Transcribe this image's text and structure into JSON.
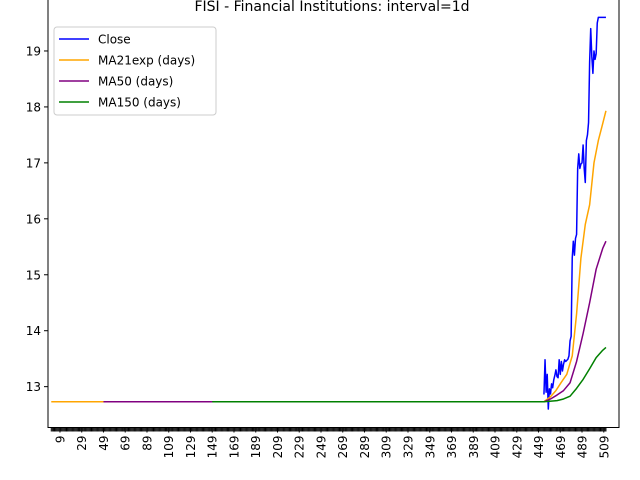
{
  "chart_data": {
    "type": "line",
    "title": "FISI - Financial Institutions: interval=1d",
    "xlabel": "",
    "ylabel": "",
    "xlim": [
      -2,
      523
    ],
    "ylim": [
      12.27,
      19.92
    ],
    "x_ticks": [
      9,
      29,
      49,
      69,
      89,
      109,
      129,
      149,
      169,
      189,
      209,
      229,
      249,
      269,
      289,
      309,
      329,
      349,
      369,
      389,
      409,
      429,
      449,
      469,
      489,
      509
    ],
    "y_ticks": [
      13,
      14,
      15,
      16,
      17,
      18,
      19
    ],
    "x_minor_ticks": {
      "from": 1,
      "to": 511,
      "step": 1
    },
    "grid": false,
    "legend_position": "upper-left",
    "series": [
      {
        "name": "Close",
        "color": "#0000ff",
        "x": [
          454,
          455,
          456,
          457,
          458,
          459,
          460,
          461,
          462,
          463,
          464,
          465,
          466,
          467,
          468,
          469,
          470,
          471,
          472,
          473,
          474,
          475,
          476,
          477,
          478,
          479,
          480,
          481,
          482,
          483,
          484,
          485,
          486,
          487,
          488,
          489,
          490,
          491,
          492,
          493,
          494,
          495,
          496,
          497,
          498,
          499,
          500,
          501,
          502,
          503,
          504,
          505,
          506,
          507,
          508,
          509,
          510,
          511
        ],
        "y": [
          12.86,
          13.48,
          12.9,
          13.22,
          12.6,
          12.96,
          12.87,
          13.05,
          12.98,
          13.12,
          13.2,
          13.3,
          13.18,
          13.16,
          13.48,
          13.22,
          13.45,
          13.28,
          13.4,
          13.48,
          13.45,
          13.47,
          13.49,
          13.55,
          13.82,
          13.9,
          15.3,
          15.6,
          15.35,
          15.65,
          15.72,
          16.9,
          17.16,
          16.9,
          16.98,
          17.0,
          17.32,
          16.9,
          16.65,
          17.4,
          17.5,
          17.72,
          18.8,
          19.4,
          18.9,
          18.6,
          19.0,
          18.85,
          18.95,
          19.5,
          19.6,
          19.6,
          19.6,
          19.6,
          19.6,
          19.6,
          19.6,
          19.6
        ]
      },
      {
        "name": "MA21exp (days)",
        "color": "#ffa500",
        "x": [
          1,
          49,
          454,
          460,
          465,
          470,
          475,
          480,
          484,
          488,
          492,
          496,
          500,
          504,
          508,
          511
        ],
        "y": [
          12.73,
          12.73,
          12.73,
          12.82,
          12.93,
          13.08,
          13.22,
          13.55,
          14.3,
          15.3,
          15.9,
          16.25,
          17.0,
          17.4,
          17.7,
          17.93
        ]
      },
      {
        "name": "MA50 (days)",
        "color": "#800080",
        "x": [
          49,
          149,
          454,
          460,
          466,
          472,
          478,
          484,
          490,
          496,
          502,
          508,
          511
        ],
        "y": [
          12.73,
          12.73,
          12.73,
          12.78,
          12.85,
          12.93,
          13.07,
          13.45,
          13.95,
          14.5,
          15.1,
          15.47,
          15.6
        ]
      },
      {
        "name": "MA150 (days)",
        "color": "#008000",
        "x": [
          149,
          454,
          466,
          472,
          478,
          484,
          490,
          496,
          502,
          508,
          511
        ],
        "y": [
          12.73,
          12.73,
          12.75,
          12.78,
          12.83,
          12.97,
          13.13,
          13.32,
          13.52,
          13.65,
          13.7
        ]
      }
    ]
  }
}
